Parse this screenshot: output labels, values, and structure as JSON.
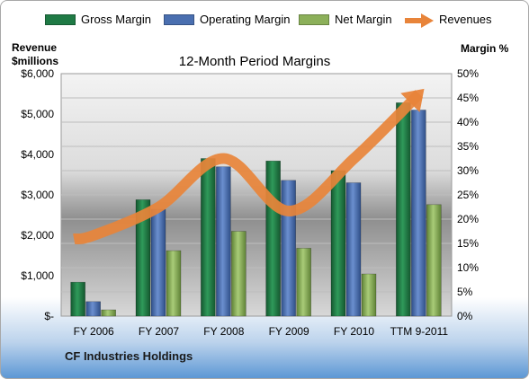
{
  "chart_data": {
    "type": "bar",
    "title": "12-Month Period Margins",
    "categories": [
      "FY 2006",
      "FY 2007",
      "FY 2008",
      "FY 2009",
      "FY 2010",
      "TTM 9-2011"
    ],
    "series": [
      {
        "name": "Gross Margin",
        "axis": "right",
        "values": [
          7.0,
          24.0,
          32.5,
          32.0,
          30.0,
          44.0
        ]
      },
      {
        "name": "Operating Margin",
        "axis": "right",
        "values": [
          3.0,
          22.0,
          30.8,
          28.0,
          27.5,
          42.5
        ]
      },
      {
        "name": "Net Margin",
        "axis": "right",
        "values": [
          1.3,
          13.5,
          17.5,
          14.0,
          8.7,
          23.0
        ]
      },
      {
        "name": "Revenues",
        "type": "line",
        "axis": "left",
        "values": [
          2000,
          2700,
          3900,
          2600,
          3900,
          5500
        ]
      }
    ],
    "left_axis": {
      "label_line1": "Revenue",
      "label_line2": "$millions",
      "ylim": [
        0,
        6000
      ],
      "ticks": [
        "$-",
        "$1,000",
        "$2,000",
        "$3,000",
        "$4,000",
        "$5,000",
        "$6,000"
      ]
    },
    "right_axis": {
      "label": "Margin %",
      "ylim": [
        0,
        50
      ],
      "ticks": [
        "0%",
        "5%",
        "10%",
        "15%",
        "20%",
        "25%",
        "30%",
        "35%",
        "40%",
        "45%",
        "50%"
      ]
    },
    "legend_position": "top",
    "grid": true
  },
  "colors": {
    "gross": "#1f7a45",
    "operating": "#4a6fb0",
    "net": "#8cb05a",
    "revenues": "#e8843a"
  },
  "company": "CF Industries Holdings"
}
